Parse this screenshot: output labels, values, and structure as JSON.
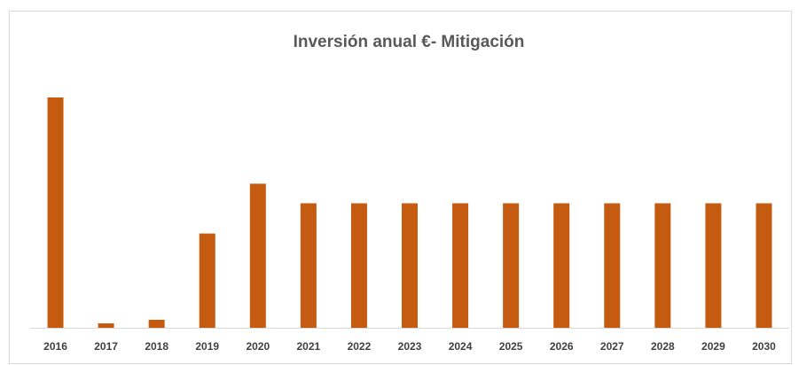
{
  "chart_data": {
    "type": "bar",
    "title": "Inversión anual €- Mitigación",
    "categories": [
      "2016",
      "2017",
      "2018",
      "2019",
      "2020",
      "2021",
      "2022",
      "2023",
      "2024",
      "2025",
      "2026",
      "2027",
      "2028",
      "2029",
      "2030"
    ],
    "values": [
      259,
      5,
      9,
      106,
      162,
      140,
      140,
      140,
      140,
      140,
      140,
      140,
      140,
      140,
      140
    ],
    "color": "#c55a11"
  }
}
